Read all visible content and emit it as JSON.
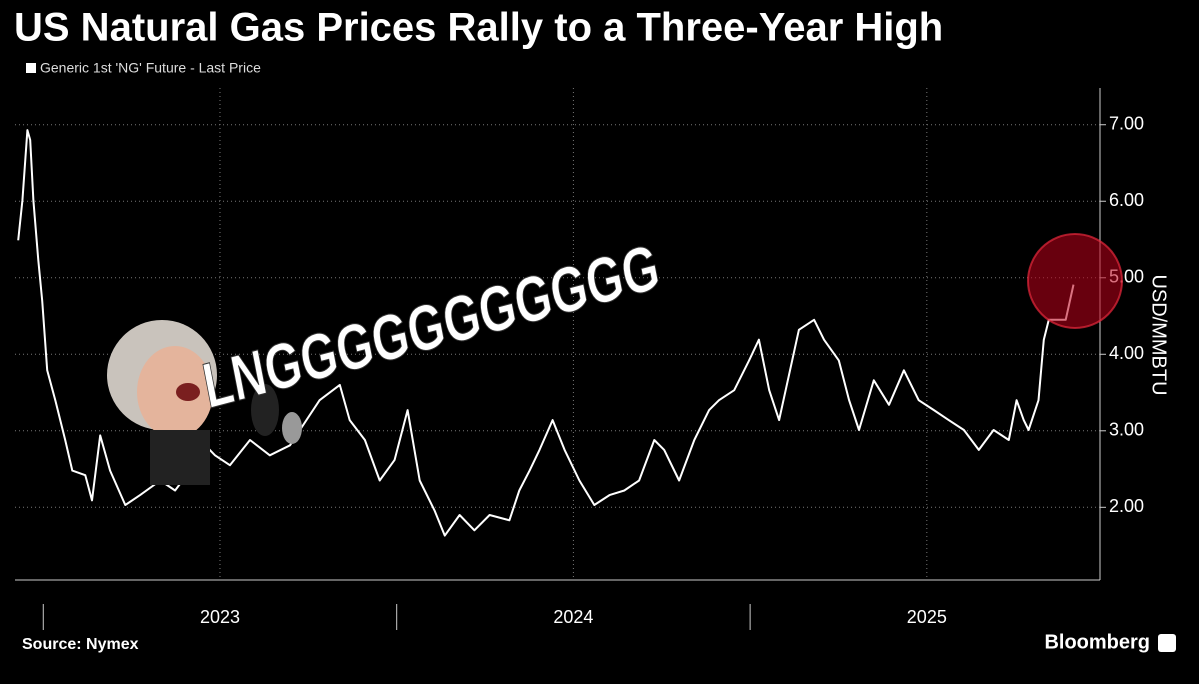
{
  "chart_data": {
    "type": "line",
    "title": "US Natural Gas Prices Rally to a Three-Year High",
    "y_label": "USD/MMBTU",
    "source": "Source: Nymex",
    "brand": "Bloomberg",
    "annotation": "LNGGGGGGGGGGG",
    "x": [
      2022.929,
      2022.941,
      2022.955,
      2022.963,
      2022.972,
      2022.986,
      2022.997,
      2023.011,
      2023.034,
      2023.062,
      2023.082,
      2023.119,
      2023.138,
      2023.161,
      2023.189,
      2023.232,
      2023.274,
      2023.331,
      2023.373,
      2023.415,
      2023.444,
      2023.486,
      2023.528,
      2023.585,
      2023.641,
      2023.698,
      2023.726,
      2023.782,
      2023.839,
      2023.867,
      2023.91,
      2023.952,
      2023.994,
      2024.031,
      2024.065,
      2024.107,
      2024.136,
      2024.178,
      2024.22,
      2024.263,
      2024.319,
      2024.347,
      2024.376,
      2024.404,
      2024.441,
      2024.475,
      2024.517,
      2024.559,
      2024.602,
      2024.644,
      2024.686,
      2024.729,
      2024.757,
      2024.799,
      2024.842,
      2024.884,
      2024.912,
      2024.955,
      2024.997,
      2025.025,
      2025.054,
      2025.082,
      2025.138,
      2025.181,
      2025.209,
      2025.251,
      2025.28,
      2025.308,
      2025.35,
      2025.393,
      2025.435,
      2025.477,
      2025.52,
      2025.562,
      2025.605,
      2025.647,
      2025.689,
      2025.732,
      2025.754,
      2025.774,
      2025.788,
      2025.816,
      2025.831,
      2025.845,
      2025.873,
      2025.893,
      2025.915
    ],
    "series": [
      {
        "name": "Generic 1st 'NG' Future - Last Price",
        "color": "#ffffff",
        "values": [
          5.49,
          6.01,
          6.93,
          6.8,
          6.01,
          5.23,
          4.7,
          3.79,
          3.4,
          2.88,
          2.48,
          2.42,
          2.09,
          2.94,
          2.48,
          2.03,
          2.16,
          2.35,
          2.22,
          2.48,
          2.88,
          2.68,
          2.55,
          2.88,
          2.68,
          2.81,
          3.01,
          3.4,
          3.6,
          3.14,
          2.88,
          2.35,
          2.62,
          3.27,
          2.35,
          1.96,
          1.63,
          1.9,
          1.7,
          1.9,
          1.83,
          2.22,
          2.48,
          2.75,
          3.14,
          2.75,
          2.35,
          2.03,
          2.16,
          2.22,
          2.35,
          2.88,
          2.75,
          2.35,
          2.88,
          3.27,
          3.4,
          3.53,
          3.92,
          4.19,
          3.53,
          3.14,
          4.32,
          4.45,
          4.19,
          3.92,
          3.4,
          3.01,
          3.66,
          3.34,
          3.79,
          3.4,
          3.27,
          3.14,
          3.01,
          2.75,
          3.01,
          2.88,
          3.4,
          3.14,
          3.01,
          3.4,
          4.19,
          4.45,
          4.45,
          4.45,
          4.91
        ]
      }
    ],
    "xlim": [
      2022.92,
      2025.99
    ],
    "xticks": [
      {
        "value": 2023.5,
        "label": "2023"
      },
      {
        "value": 2024.5,
        "label": "2024"
      },
      {
        "value": 2025.5,
        "label": "2025"
      }
    ],
    "xminorticks": [
      2023,
      2024,
      2025
    ],
    "ylim": [
      1.05,
      7.48
    ],
    "yticks": [
      {
        "value": 2,
        "label": "2.00"
      },
      {
        "value": 3,
        "label": "3.00"
      },
      {
        "value": 4,
        "label": "4.00"
      },
      {
        "value": 5,
        "label": "5.00"
      },
      {
        "value": 6,
        "label": "6.00"
      },
      {
        "value": 7,
        "label": "7.00"
      }
    ],
    "grid": true
  }
}
